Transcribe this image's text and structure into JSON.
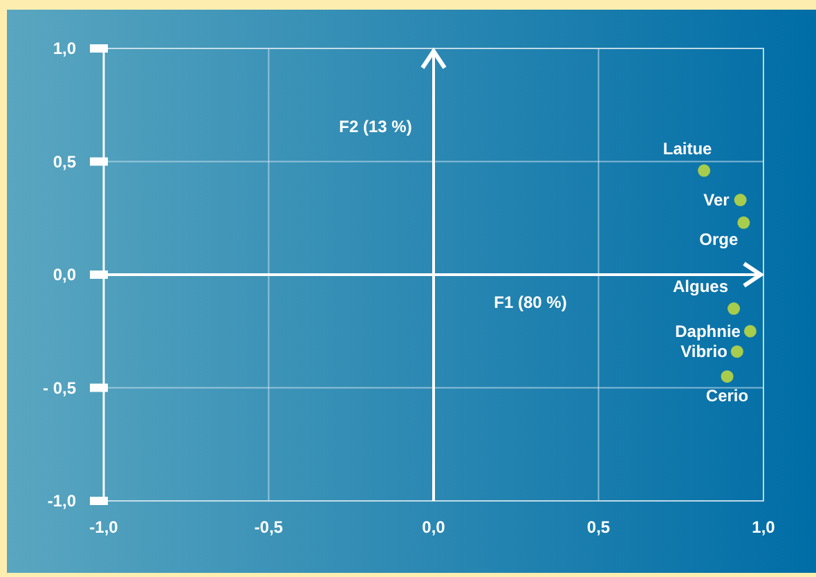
{
  "chart_data": {
    "type": "scatter",
    "xlabel": "F1 (80 %)",
    "ylabel": "F2 (13 %)",
    "x": [
      0.82,
      0.93,
      0.94,
      0.91,
      0.96,
      0.92,
      0.89
    ],
    "series": [
      {
        "color": "#a8cc4c",
        "values": [
          0.46,
          0.33,
          0.23,
          -0.15,
          -0.25,
          -0.34,
          -0.45
        ]
      }
    ],
    "xlim": [
      -1,
      1
    ],
    "ylim": [
      -1,
      1
    ],
    "xticks": [
      {
        "value": -1,
        "label": "-1,0"
      },
      {
        "value": -0.5,
        "label": "-0,5"
      },
      {
        "value": 0,
        "label": "0,0"
      },
      {
        "value": 0.5,
        "label": "0,5"
      },
      {
        "value": 1,
        "label": "1,0"
      }
    ],
    "yticks": [
      {
        "value": -1,
        "label": "-1,0"
      },
      {
        "value": -0.5,
        "label": "- 0,5"
      },
      {
        "value": 0,
        "label": "0,0"
      },
      {
        "value": 0.5,
        "label": "0,5"
      },
      {
        "value": 1,
        "label": "1,0"
      }
    ],
    "grid": true,
    "marker": "circle",
    "annotations": [
      {
        "text": "Laitue",
        "x": 0.82,
        "y": 0.46
      },
      {
        "text": "Ver",
        "x": 0.93,
        "y": 0.33
      },
      {
        "text": "Orge",
        "x": 0.94,
        "y": 0.23
      },
      {
        "text": "Algues",
        "x": 0.91,
        "y": -0.15
      },
      {
        "text": "Daphnie",
        "x": 0.96,
        "y": -0.25
      },
      {
        "text": "Vibrio",
        "x": 0.92,
        "y": -0.34
      },
      {
        "text": "Cerio",
        "x": 0.89,
        "y": -0.45
      }
    ]
  }
}
